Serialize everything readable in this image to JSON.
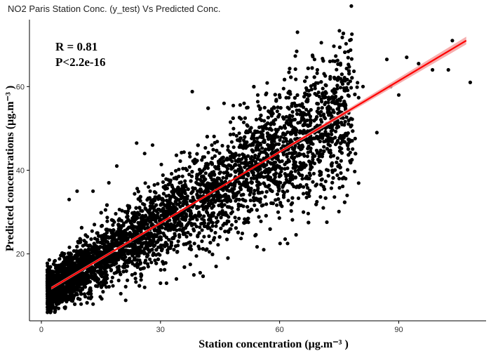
{
  "chart_data": {
    "type": "scatter",
    "title": "NO2 Paris Station Conc. (y_test) Vs Predicted Conc.",
    "xlabel_main": "Station concentration ",
    "xlabel_unit": "(µg.m⁻³ )",
    "ylabel_main": "Predicted concentrations ",
    "ylabel_unit": "(µg.m⁻³ )",
    "xlim": [
      -3,
      112
    ],
    "ylim": [
      4,
      76
    ],
    "x_ticks": [
      0,
      30,
      60,
      90
    ],
    "y_ticks": [
      20,
      40,
      60
    ],
    "grid": false,
    "annotations": {
      "r_text": "R = 0.81",
      "p_text": "P<2.2e-16"
    },
    "fit_line": {
      "x": [
        2.5,
        107
      ],
      "y": [
        11.8,
        71
      ],
      "color": "#ff0000",
      "band_color": "#f4a0a0"
    },
    "point_color": "#000000",
    "cloud": {
      "count": 5200,
      "x_min": 1.5,
      "x_max": 100,
      "slope": 0.566,
      "intercept": 10.4
    },
    "outliers": [
      {
        "x": 64.5,
        "y": 73
      },
      {
        "x": 70.5,
        "y": 70.5
      },
      {
        "x": 103.5,
        "y": 71
      },
      {
        "x": 87,
        "y": 66.5
      },
      {
        "x": 92,
        "y": 67
      },
      {
        "x": 95,
        "y": 65.5
      },
      {
        "x": 98.5,
        "y": 64
      },
      {
        "x": 102.5,
        "y": 64
      },
      {
        "x": 108,
        "y": 61
      },
      {
        "x": 88,
        "y": 60
      },
      {
        "x": 90,
        "y": 58
      },
      {
        "x": 81,
        "y": 60
      },
      {
        "x": 76.5,
        "y": 59
      },
      {
        "x": 84.5,
        "y": 49
      },
      {
        "x": 76,
        "y": 47
      },
      {
        "x": 77,
        "y": 34
      },
      {
        "x": 70,
        "y": 42
      },
      {
        "x": 75,
        "y": 38
      },
      {
        "x": 71,
        "y": 31
      },
      {
        "x": 66,
        "y": 36
      },
      {
        "x": 38,
        "y": 58.8
      },
      {
        "x": 54.5,
        "y": 58
      },
      {
        "x": 69.5,
        "y": 64
      },
      {
        "x": 67,
        "y": 57
      },
      {
        "x": 46,
        "y": 56
      },
      {
        "x": 63,
        "y": 52
      },
      {
        "x": 58,
        "y": 53
      },
      {
        "x": 52,
        "y": 55
      },
      {
        "x": 67.5,
        "y": 38
      },
      {
        "x": 66,
        "y": 30
      },
      {
        "x": 62,
        "y": 22.5
      },
      {
        "x": 56,
        "y": 21
      },
      {
        "x": 47,
        "y": 19
      },
      {
        "x": 44,
        "y": 17
      },
      {
        "x": 40,
        "y": 15.5
      },
      {
        "x": 34,
        "y": 14
      },
      {
        "x": 30,
        "y": 13
      },
      {
        "x": 26,
        "y": 12
      },
      {
        "x": 20,
        "y": 10.5
      },
      {
        "x": 24,
        "y": 46.5
      },
      {
        "x": 26,
        "y": 44
      },
      {
        "x": 28,
        "y": 46
      },
      {
        "x": 19,
        "y": 41
      },
      {
        "x": 17,
        "y": 37
      },
      {
        "x": 13,
        "y": 35
      },
      {
        "x": 9,
        "y": 35
      },
      {
        "x": 7,
        "y": 33
      },
      {
        "x": 1.5,
        "y": 12.5
      },
      {
        "x": 2,
        "y": 9
      },
      {
        "x": 3.5,
        "y": 6.5
      },
      {
        "x": 6,
        "y": 7
      },
      {
        "x": 10,
        "y": 8
      }
    ]
  }
}
